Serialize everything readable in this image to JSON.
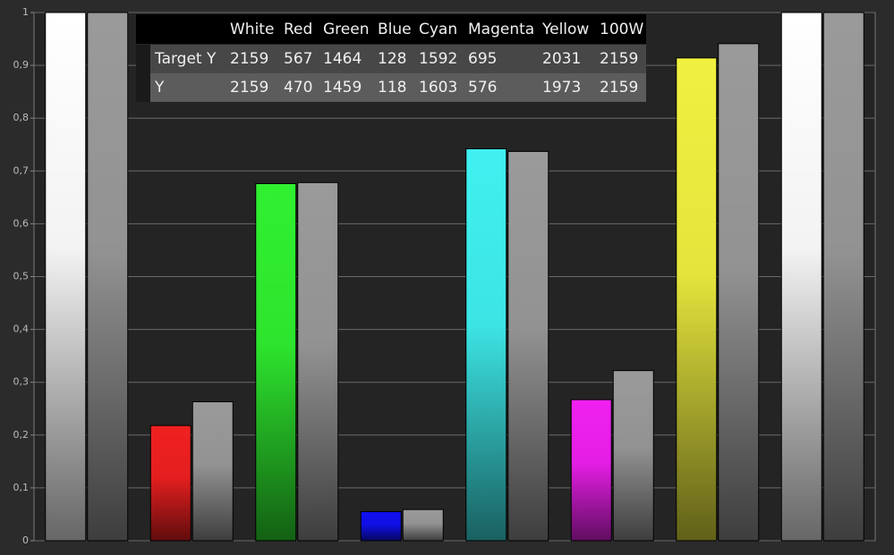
{
  "chart_data": {
    "type": "bar",
    "categories": [
      "White",
      "Red",
      "Green",
      "Blue",
      "Cyan",
      "Magenta",
      "Yellow",
      "100W"
    ],
    "series": [
      {
        "colors": [
          "#ffffff",
          "#f02020",
          "#30f030",
          "#1010f0",
          "#40f0f0",
          "#f020f0",
          "#f0f040",
          "#ffffff"
        ],
        "values": [
          1,
          0.218,
          0.676,
          0.055,
          0.742,
          0.267,
          0.914,
          1
        ]
      },
      {
        "color": "#9a9a9a",
        "values": [
          1,
          0.263,
          0.678,
          0.059,
          0.737,
          0.322,
          0.941,
          1
        ]
      }
    ],
    "ylim": [
      0,
      1
    ],
    "yticks": [
      0,
      {
        "value": 0.1,
        "label": "0,1"
      },
      {
        "value": 0.2,
        "label": "0,2"
      },
      {
        "value": 0.3,
        "label": "0,3"
      },
      {
        "value": 0.4,
        "label": "0,4"
      },
      {
        "value": 0.5,
        "label": "0,5"
      },
      {
        "value": 0.6,
        "label": "0,6"
      },
      {
        "value": 0.7,
        "label": "0,7"
      },
      {
        "value": 0.8,
        "label": "0,8"
      },
      {
        "value": 0.9,
        "label": "0,9"
      },
      1
    ],
    "grid": true,
    "table": {
      "rows": [
        {
          "label": "Target Y",
          "values": [
            2159,
            567,
            1464,
            128,
            1592,
            695,
            2031,
            2159
          ]
        },
        {
          "label": "Y",
          "values": [
            2159,
            470,
            1459,
            118,
            1603,
            576,
            1973,
            2159
          ]
        }
      ]
    }
  }
}
